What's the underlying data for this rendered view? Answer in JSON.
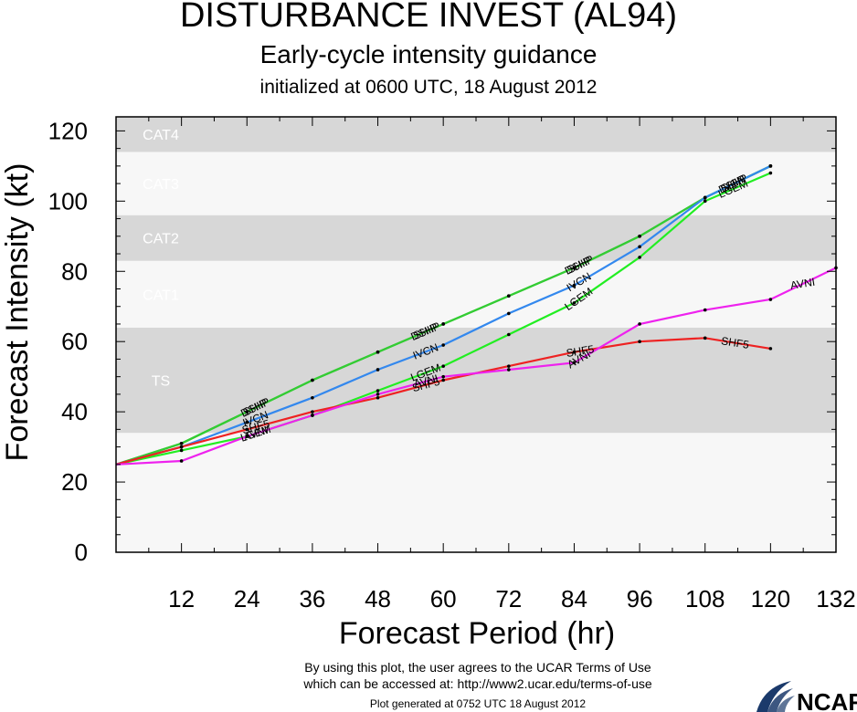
{
  "header": {
    "title": "DISTURBANCE INVEST (AL94)",
    "subtitle": "Early-cycle intensity guidance",
    "init": "initialized at 0600 UTC, 18 August 2012"
  },
  "footer": {
    "terms_line1": "By using this plot, the user agrees to the UCAR Terms of Use",
    "terms_line2": "which can be accessed at: http://www2.ucar.edu/terms-of-use",
    "generated": "Plot generated at 0752 UTC   18 August 2012",
    "logo_text": "NCAR"
  },
  "chart_data": {
    "type": "line",
    "xlabel": "Forecast Period (hr)",
    "ylabel": "Forecast Intensity (kt)",
    "xlim": [
      0,
      132
    ],
    "ylim": [
      0,
      124
    ],
    "xticks": [
      12,
      24,
      36,
      48,
      60,
      72,
      84,
      96,
      108,
      120,
      132
    ],
    "yticks": [
      0,
      20,
      40,
      60,
      80,
      100,
      120
    ],
    "bands": [
      {
        "label": "TS",
        "from": 34,
        "to": 64,
        "color": "#d7d7d7"
      },
      {
        "label": "CAT1",
        "from": 64,
        "to": 83,
        "color": "#f7f7f7"
      },
      {
        "label": "CAT2",
        "from": 83,
        "to": 96,
        "color": "#d7d7d7"
      },
      {
        "label": "CAT3",
        "from": 96,
        "to": 114,
        "color": "#f7f7f7"
      },
      {
        "label": "CAT4",
        "from": 114,
        "to": 124,
        "color": "#d7d7d7"
      }
    ],
    "below_band_color": "#f7f7f7",
    "series": [
      {
        "name": "DSHP",
        "color": "#33cc33",
        "points": [
          [
            0,
            25
          ],
          [
            12,
            31
          ],
          [
            24,
            40
          ],
          [
            36,
            49
          ],
          [
            48,
            57
          ],
          [
            60,
            65
          ],
          [
            72,
            73
          ],
          [
            84,
            81
          ],
          [
            96,
            90
          ],
          [
            108,
            101
          ],
          [
            120,
            110
          ]
        ]
      },
      {
        "name": "SHIP",
        "color": "#33cc33",
        "points": [
          [
            0,
            25
          ],
          [
            12,
            31
          ],
          [
            24,
            40
          ],
          [
            36,
            49
          ],
          [
            48,
            57
          ],
          [
            60,
            65
          ],
          [
            72,
            73
          ],
          [
            84,
            81
          ],
          [
            96,
            90
          ],
          [
            108,
            101
          ],
          [
            120,
            110
          ]
        ]
      },
      {
        "name": "IVCN",
        "color": "#3388ee",
        "points": [
          [
            0,
            25
          ],
          [
            12,
            30
          ],
          [
            24,
            37
          ],
          [
            36,
            44
          ],
          [
            48,
            52
          ],
          [
            60,
            59
          ],
          [
            72,
            68
          ],
          [
            84,
            76
          ],
          [
            96,
            87
          ],
          [
            108,
            101
          ],
          [
            120,
            110
          ]
        ]
      },
      {
        "name": "LGEM",
        "color": "#22ee22",
        "points": [
          [
            0,
            25
          ],
          [
            12,
            29
          ],
          [
            24,
            33
          ],
          [
            36,
            39
          ],
          [
            48,
            46
          ],
          [
            60,
            53
          ],
          [
            72,
            62
          ],
          [
            84,
            71
          ],
          [
            96,
            84
          ],
          [
            108,
            100
          ],
          [
            120,
            108
          ]
        ]
      },
      {
        "name": "SHF5",
        "color": "#ee2222",
        "points": [
          [
            0,
            25
          ],
          [
            12,
            30
          ],
          [
            24,
            35
          ],
          [
            36,
            40
          ],
          [
            48,
            44
          ],
          [
            60,
            49
          ],
          [
            72,
            53
          ],
          [
            84,
            57
          ],
          [
            96,
            60
          ],
          [
            108,
            61
          ],
          [
            120,
            58
          ]
        ]
      },
      {
        "name": "AVNI",
        "color": "#ee22ee",
        "points": [
          [
            0,
            25
          ],
          [
            12,
            26
          ],
          [
            24,
            33
          ],
          [
            36,
            39
          ],
          [
            48,
            45
          ],
          [
            60,
            50
          ],
          [
            72,
            52
          ],
          [
            84,
            54
          ],
          [
            96,
            65
          ],
          [
            108,
            69
          ],
          [
            120,
            72
          ],
          [
            132,
            81
          ]
        ]
      }
    ],
    "grid": false,
    "legend": "none (series labels drawn along lines)"
  }
}
